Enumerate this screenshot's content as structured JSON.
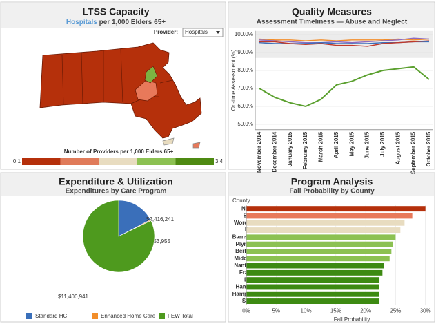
{
  "map_panel": {
    "title": "LTSS Capacity",
    "subtitle_highlight": "Hospitals",
    "subtitle_rest": "per 1,000 Elders 65+",
    "provider_label": "Provider:",
    "provider_value": "Hospitals",
    "legend_title": "Number of Providers per 1,000 Elders 65+",
    "legend_min": 0.1,
    "legend_max": 3.4,
    "legend_colors": [
      "#b5300b",
      "#e07b5a",
      "#e8dcc0",
      "#8cc152",
      "#4e8a12"
    ]
  },
  "chart_data": [
    {
      "type": "line",
      "title": "Quality Measures",
      "subtitle": "Assessment Timeliness — Abuse and Neglect",
      "y_label": "On-time Assessment (%)",
      "categories": [
        "November 2014",
        "December 2014",
        "January 2015",
        "February 2015",
        "March 2015",
        "April 2015",
        "May 2015",
        "June 2015",
        "July 2015",
        "August 2015",
        "September 2015",
        "October 2015"
      ],
      "ylim": [
        47,
        102
      ],
      "yticks": [
        {
          "value": 50,
          "label": "50.0%"
        },
        {
          "value": 60,
          "label": "60.0%"
        },
        {
          "value": 70,
          "label": "70.0%"
        },
        {
          "value": 80,
          "label": "80.0%"
        },
        {
          "value": 90,
          "label": "90.0%"
        },
        {
          "value": 100,
          "label": "100.0%"
        }
      ],
      "series": [
        {
          "color": "#5ba02f",
          "values": [
            70,
            65,
            62,
            60,
            64,
            72,
            74,
            77.5,
            80,
            81,
            82,
            75
          ]
        },
        {
          "color": "#f28e2b",
          "values": [
            97.5,
            97,
            97,
            96.5,
            97,
            96.5,
            97,
            97,
            97,
            97.5,
            97,
            97.5
          ]
        },
        {
          "color": "#8e6bbf",
          "values": [
            97,
            96.5,
            96,
            95.5,
            95.5,
            96,
            95.5,
            96,
            96.5,
            97,
            98,
            97.5
          ]
        },
        {
          "color": "#3a6fba",
          "values": [
            95.5,
            95,
            95,
            95,
            95.5,
            95,
            95,
            95,
            95.5,
            95.5,
            96,
            96
          ]
        },
        {
          "color": "#c0392b",
          "values": [
            96,
            96,
            95,
            94.5,
            95,
            94,
            94,
            93.5,
            95,
            95.5,
            96,
            96.5
          ]
        }
      ]
    },
    {
      "type": "pie",
      "title": "Expenditure & Utilization",
      "subtitle": "Expenditures by Care Program",
      "series": [
        {
          "name": "Standard HC",
          "color": "#3a6fba"
        },
        {
          "name": "Enhanced Home Care",
          "color": "#f28e2b"
        },
        {
          "name": "FEW Total",
          "color": "#4e9a1e"
        }
      ],
      "values": [
        2416241,
        53955,
        11400941
      ],
      "value_labels": [
        "$2,416,241",
        "$53,955",
        "$11,400,941"
      ]
    },
    {
      "type": "hbar",
      "title": "Program Analysis",
      "subtitle": "Fall Probability by County",
      "category_header": "County",
      "x_label": "Fall Probability",
      "categories": [
        "Norfolk",
        "Bristol",
        "Worcester",
        "Essex",
        "Barnstable",
        "Plymouth",
        "Berkshire",
        "Middlesex",
        "Nantucket",
        "Franklin",
        "Dukes",
        "Hampden",
        "Hampshire",
        "Suffolk"
      ],
      "values": [
        30,
        27.8,
        26.5,
        25.8,
        25,
        24.5,
        24.3,
        24,
        23,
        22.8,
        22.3,
        22.2,
        22.2,
        22.3
      ],
      "colors": [
        "#b5300b",
        "#e8795a",
        "#e8dcc0",
        "#e8dcc0",
        "#8cc152",
        "#8cc152",
        "#8cc152",
        "#8cc152",
        "#3d8a12",
        "#3d8a12",
        "#3d8a12",
        "#3d8a12",
        "#3d8a12",
        "#3d8a12"
      ],
      "xlim": [
        0,
        30.5
      ],
      "xticks": [
        {
          "value": 0,
          "label": "0%"
        },
        {
          "value": 5,
          "label": "5%"
        },
        {
          "value": 10,
          "label": "10%"
        },
        {
          "value": 15,
          "label": "15%"
        },
        {
          "value": 20,
          "label": "20%"
        },
        {
          "value": 25,
          "label": "25%"
        },
        {
          "value": 30,
          "label": "30%"
        }
      ]
    }
  ]
}
